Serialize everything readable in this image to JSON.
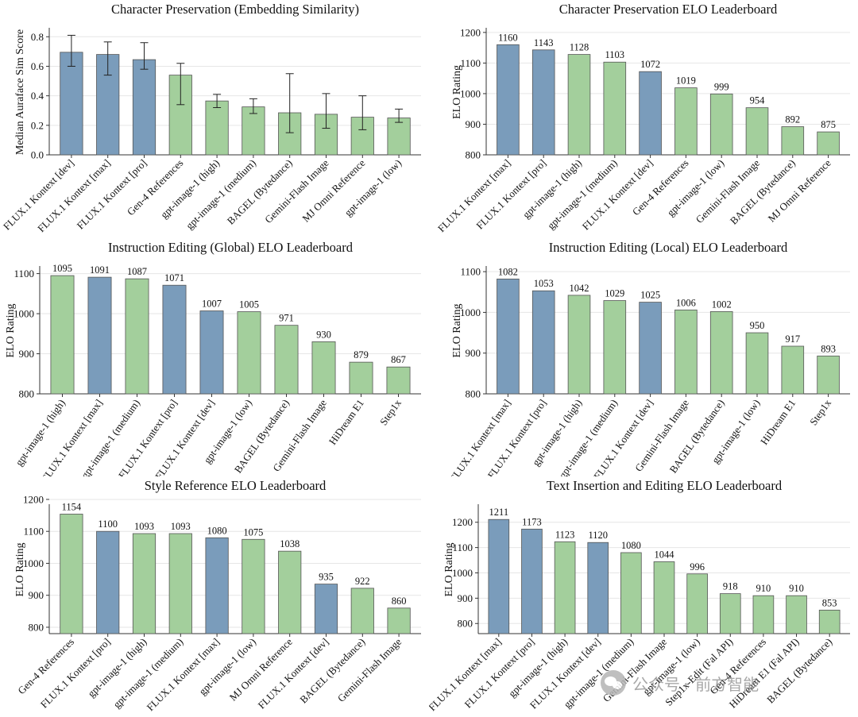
{
  "colors": {
    "flux": "#7a9cbb",
    "other": "#a3cf9c",
    "error_bar": "#222222",
    "grid": "#e6e6e6",
    "axis": "#333333"
  },
  "watermark": {
    "channel": "公众号 · 前方智能"
  },
  "chart_data": [
    {
      "type": "bar",
      "title": "Character Preservation (Embedding Similarity)",
      "ylabel": "Median Auraface Sim Score",
      "xlabel": "",
      "ylim": [
        0,
        0.85
      ],
      "yticks": [
        0,
        0.2,
        0.4,
        0.6,
        0.8
      ],
      "yticklabels": [
        "0.0",
        "0.2",
        "0.4",
        "0.6",
        "0.8"
      ],
      "data_labels": false,
      "error_bars": true,
      "categories": [
        "FLUX.1 Kontext [dev]",
        "FLUX.1 Kontext [max]",
        "FLUX.1 Kontext [pro]",
        "Gen-4 References",
        "gpt-image-1 (high)",
        "gpt-image-1 (medium)",
        "BAGEL (Bytedance)",
        "Gemini-Flash Image",
        "MJ Omni Reference",
        "gpt-image-1 (low)"
      ],
      "values": [
        0.695,
        0.68,
        0.645,
        0.54,
        0.365,
        0.325,
        0.285,
        0.275,
        0.255,
        0.25
      ],
      "err_low": [
        0.6,
        0.54,
        0.58,
        0.34,
        0.32,
        0.28,
        0.15,
        0.18,
        0.17,
        0.22
      ],
      "err_high": [
        0.81,
        0.765,
        0.76,
        0.62,
        0.41,
        0.38,
        0.55,
        0.415,
        0.4,
        0.31
      ],
      "flux": [
        true,
        true,
        true,
        false,
        false,
        false,
        false,
        false,
        false,
        false
      ]
    },
    {
      "type": "bar",
      "title": "Character Preservation ELO Leaderboard",
      "ylabel": "ELO Rating",
      "xlabel": "",
      "ylim": [
        800,
        1210
      ],
      "yticks": [
        800,
        900,
        1000,
        1100,
        1200
      ],
      "yticklabels": [
        "800",
        "900",
        "1000",
        "1100",
        "1200"
      ],
      "data_labels": true,
      "categories": [
        "FLUX.1 Kontext [max]",
        "FLUX.1 Kontext [pro]",
        "gpt-image-1 (high)",
        "gpt-image-1 (medium)",
        "FLUX.1 Kontext [dev]",
        "Gen-4 References",
        "gpt-image-1 (low)",
        "Gemini-Flash Image",
        "BAGEL (Bytedance)",
        "MJ Omni Reference"
      ],
      "values": [
        1160,
        1143,
        1128,
        1103,
        1072,
        1019,
        999,
        954,
        892,
        875
      ],
      "value_labels": [
        "1160",
        "1143",
        "1128",
        "1103",
        "1072",
        "1019",
        "999",
        "954",
        "892",
        "875"
      ],
      "flux": [
        true,
        true,
        false,
        false,
        true,
        false,
        false,
        false,
        false,
        false
      ]
    },
    {
      "type": "bar",
      "title": "Instruction Editing (Global) ELO Leaderboard",
      "ylabel": "ELO Rating",
      "xlabel": "",
      "ylim": [
        800,
        1115
      ],
      "yticks": [
        800,
        900,
        1000,
        1100
      ],
      "yticklabels": [
        "800",
        "900",
        "1000",
        "1100"
      ],
      "data_labels": true,
      "categories": [
        "gpt-image-1 (high)",
        "FLUX.1 Kontext [max]",
        "gpt-image-1 (medium)",
        "FLUX.1 Kontext [pro]",
        "FLUX.1 Kontext [dev]",
        "gpt-image-1 (low)",
        "BAGEL (Bytedance)",
        "Gemini-Flash Image",
        "HiDream E1",
        "Step1x"
      ],
      "values": [
        1095,
        1091,
        1087,
        1071,
        1007,
        1005,
        971,
        930,
        879,
        867
      ],
      "value_labels": [
        "1095",
        "1091",
        "1087",
        "1071",
        "1007",
        "1005",
        "971",
        "930",
        "879",
        "867"
      ],
      "flux": [
        false,
        true,
        false,
        true,
        true,
        false,
        false,
        false,
        false,
        false
      ]
    },
    {
      "type": "bar",
      "title": "Instruction Editing (Local) ELO Leaderboard",
      "ylabel": "ELO Rating",
      "xlabel": "",
      "ylim": [
        800,
        1110
      ],
      "yticks": [
        800,
        900,
        1000,
        1100
      ],
      "yticklabels": [
        "800",
        "900",
        "1000",
        "1100"
      ],
      "data_labels": true,
      "categories": [
        "FLUX.1 Kontext [max]",
        "FLUX.1 Kontext [pro]",
        "gpt-image-1 (high)",
        "gpt-image-1 (medium)",
        "FLUX.1 Kontext [dev]",
        "Gemini-Flash Image",
        "BAGEL (Bytedance)",
        "gpt-image-1 (low)",
        "HiDream E1",
        "Step1x"
      ],
      "values": [
        1082,
        1053,
        1042,
        1029,
        1025,
        1006,
        1002,
        950,
        917,
        893
      ],
      "value_labels": [
        "1082",
        "1053",
        "1042",
        "1029",
        "1025",
        "1006",
        "1002",
        "950",
        "917",
        "893"
      ],
      "flux": [
        true,
        true,
        false,
        false,
        true,
        false,
        false,
        false,
        false,
        false
      ]
    },
    {
      "type": "bar",
      "title": "Style Reference ELO Leaderboard",
      "ylabel": "ELO Rating",
      "xlabel": "",
      "ylim": [
        780,
        1180
      ],
      "yticks": [
        800,
        900,
        1000,
        1100,
        1200
      ],
      "yticklabels": [
        "800",
        "900",
        "1000",
        "1100",
        "1200"
      ],
      "data_labels": true,
      "categories": [
        "Gen-4 References",
        "FLUX.1 Kontext [pro]",
        "gpt-image-1 (high)",
        "gpt-image-1 (medium)",
        "FLUX.1 Kontext [max]",
        "gpt-image-1 (low)",
        "MJ Omni Reference",
        "FLUX.1 Kontext [dev]",
        "BAGEL (Bytedance)",
        "Gemini-Flash Image"
      ],
      "values": [
        1154,
        1100,
        1093,
        1093,
        1080,
        1075,
        1038,
        935,
        922,
        860
      ],
      "value_labels": [
        "1154",
        "1100",
        "1093",
        "1093",
        "1080",
        "1075",
        "1038",
        "935",
        "922",
        "860"
      ],
      "flux": [
        false,
        true,
        false,
        false,
        true,
        false,
        false,
        true,
        false,
        false
      ]
    },
    {
      "type": "bar",
      "title": "Text Insertion and Editing ELO Leaderboard",
      "ylabel": "ELO Rating",
      "xlabel": "",
      "ylim": [
        760,
        1265
      ],
      "yticks": [
        800,
        900,
        1000,
        1100,
        1200
      ],
      "yticklabels": [
        "800",
        "900",
        "1000",
        "1100",
        "1200"
      ],
      "data_labels": true,
      "categories": [
        "FLUX.1 Kontext [max]",
        "FLUX.1 Kontext [pro]",
        "gpt-image-1 (high)",
        "FLUX.1 Kontext [dev]",
        "gpt-image-1 (medium)",
        "Gemini-Flash Image",
        "gpt-image-1 (low)",
        "Step1x-Edit (Fal API)",
        "Gen-4 References",
        "HiDream E1 (Fal API)",
        "BAGEL (Bytedance)"
      ],
      "values": [
        1211,
        1173,
        1123,
        1120,
        1080,
        1044,
        996,
        918,
        910,
        910,
        853
      ],
      "value_labels": [
        "1211",
        "1173",
        "1123",
        "1120",
        "1080",
        "1044",
        "996",
        "918",
        "910",
        "910",
        "853"
      ],
      "flux": [
        true,
        true,
        false,
        true,
        false,
        false,
        false,
        false,
        false,
        false,
        false
      ]
    }
  ]
}
